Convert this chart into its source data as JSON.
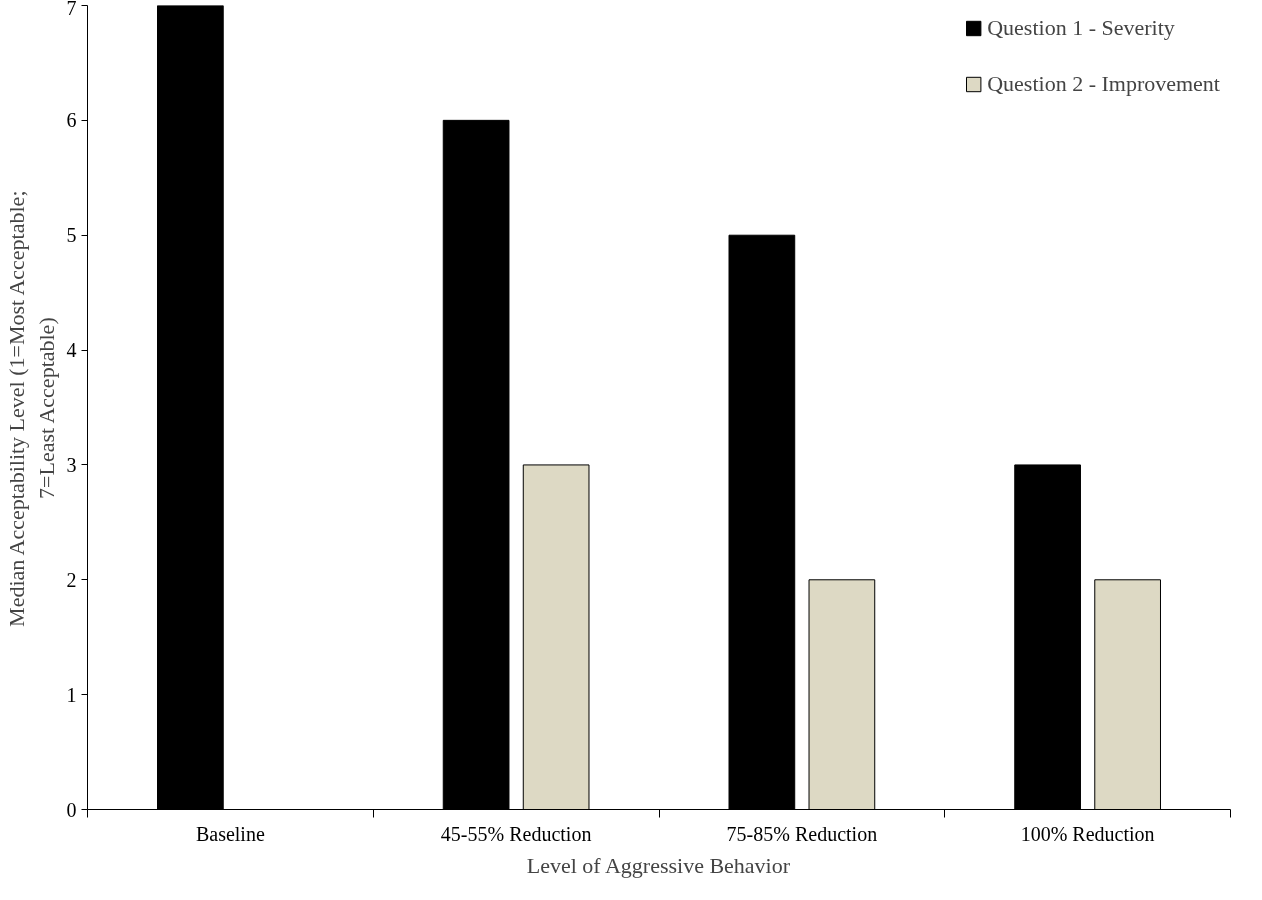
{
  "chart_data": {
    "type": "bar",
    "xlabel": "Level of Aggressive Behavior",
    "ylabel": "Median Acceptability Level (1=Most Acceptable;\n7=Least Acceptable)",
    "categories": [
      "Baseline",
      "45-55% Reduction",
      "75-85% Reduction",
      "100% Reduction"
    ],
    "series": [
      {
        "name": "Question 1 - Severity",
        "color": "#000000",
        "values": [
          7,
          6,
          5,
          3
        ]
      },
      {
        "name": "Question 2 - Improvement",
        "color": "#ddd9c4",
        "values": [
          null,
          3,
          2,
          2
        ]
      }
    ],
    "ylim": [
      0,
      7
    ],
    "yticks": [
      0,
      1,
      2,
      3,
      4,
      5,
      6,
      7
    ],
    "grid": false,
    "legend": "top right"
  }
}
